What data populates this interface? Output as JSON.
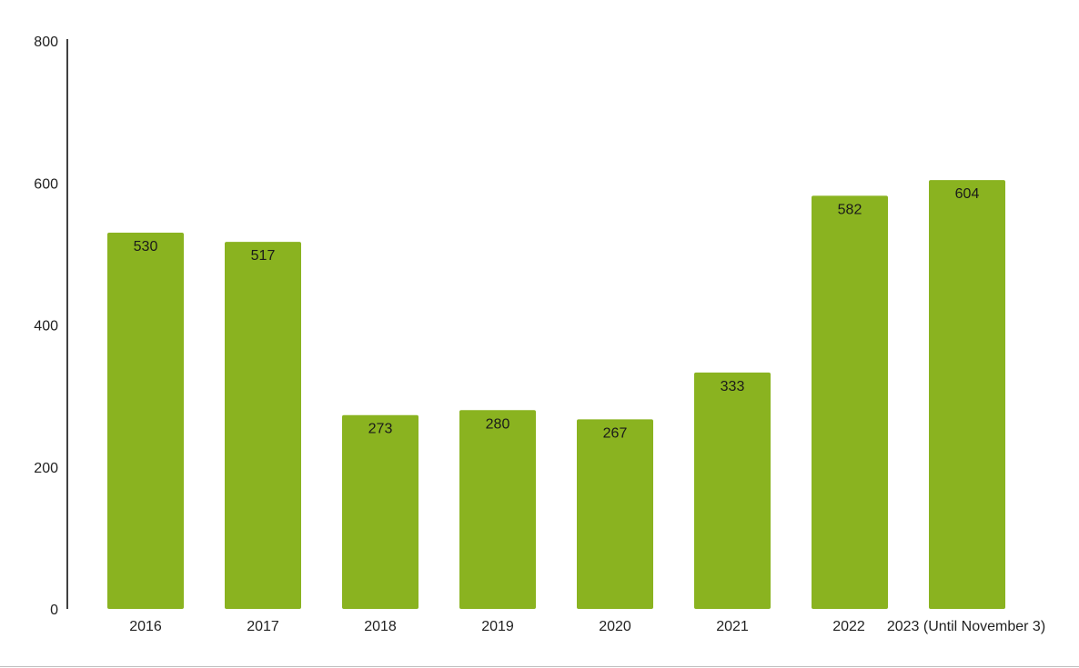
{
  "chart_data": {
    "type": "bar",
    "title": "",
    "xlabel": "",
    "ylabel": "",
    "categories": [
      "2016",
      "2017",
      "2018",
      "2019",
      "2020",
      "2021",
      "2022",
      "2023 (Until November 3)"
    ],
    "values": [
      530,
      517,
      273,
      280,
      267,
      333,
      582,
      604
    ],
    "ylim": [
      0,
      800
    ],
    "yticks": [
      0,
      200,
      400,
      600,
      800
    ],
    "grid": false,
    "legend": "none",
    "bar_color": "#8ab320",
    "data_labels": [
      "530",
      "517",
      "273",
      "280",
      "267",
      "333",
      "582",
      "604"
    ]
  }
}
